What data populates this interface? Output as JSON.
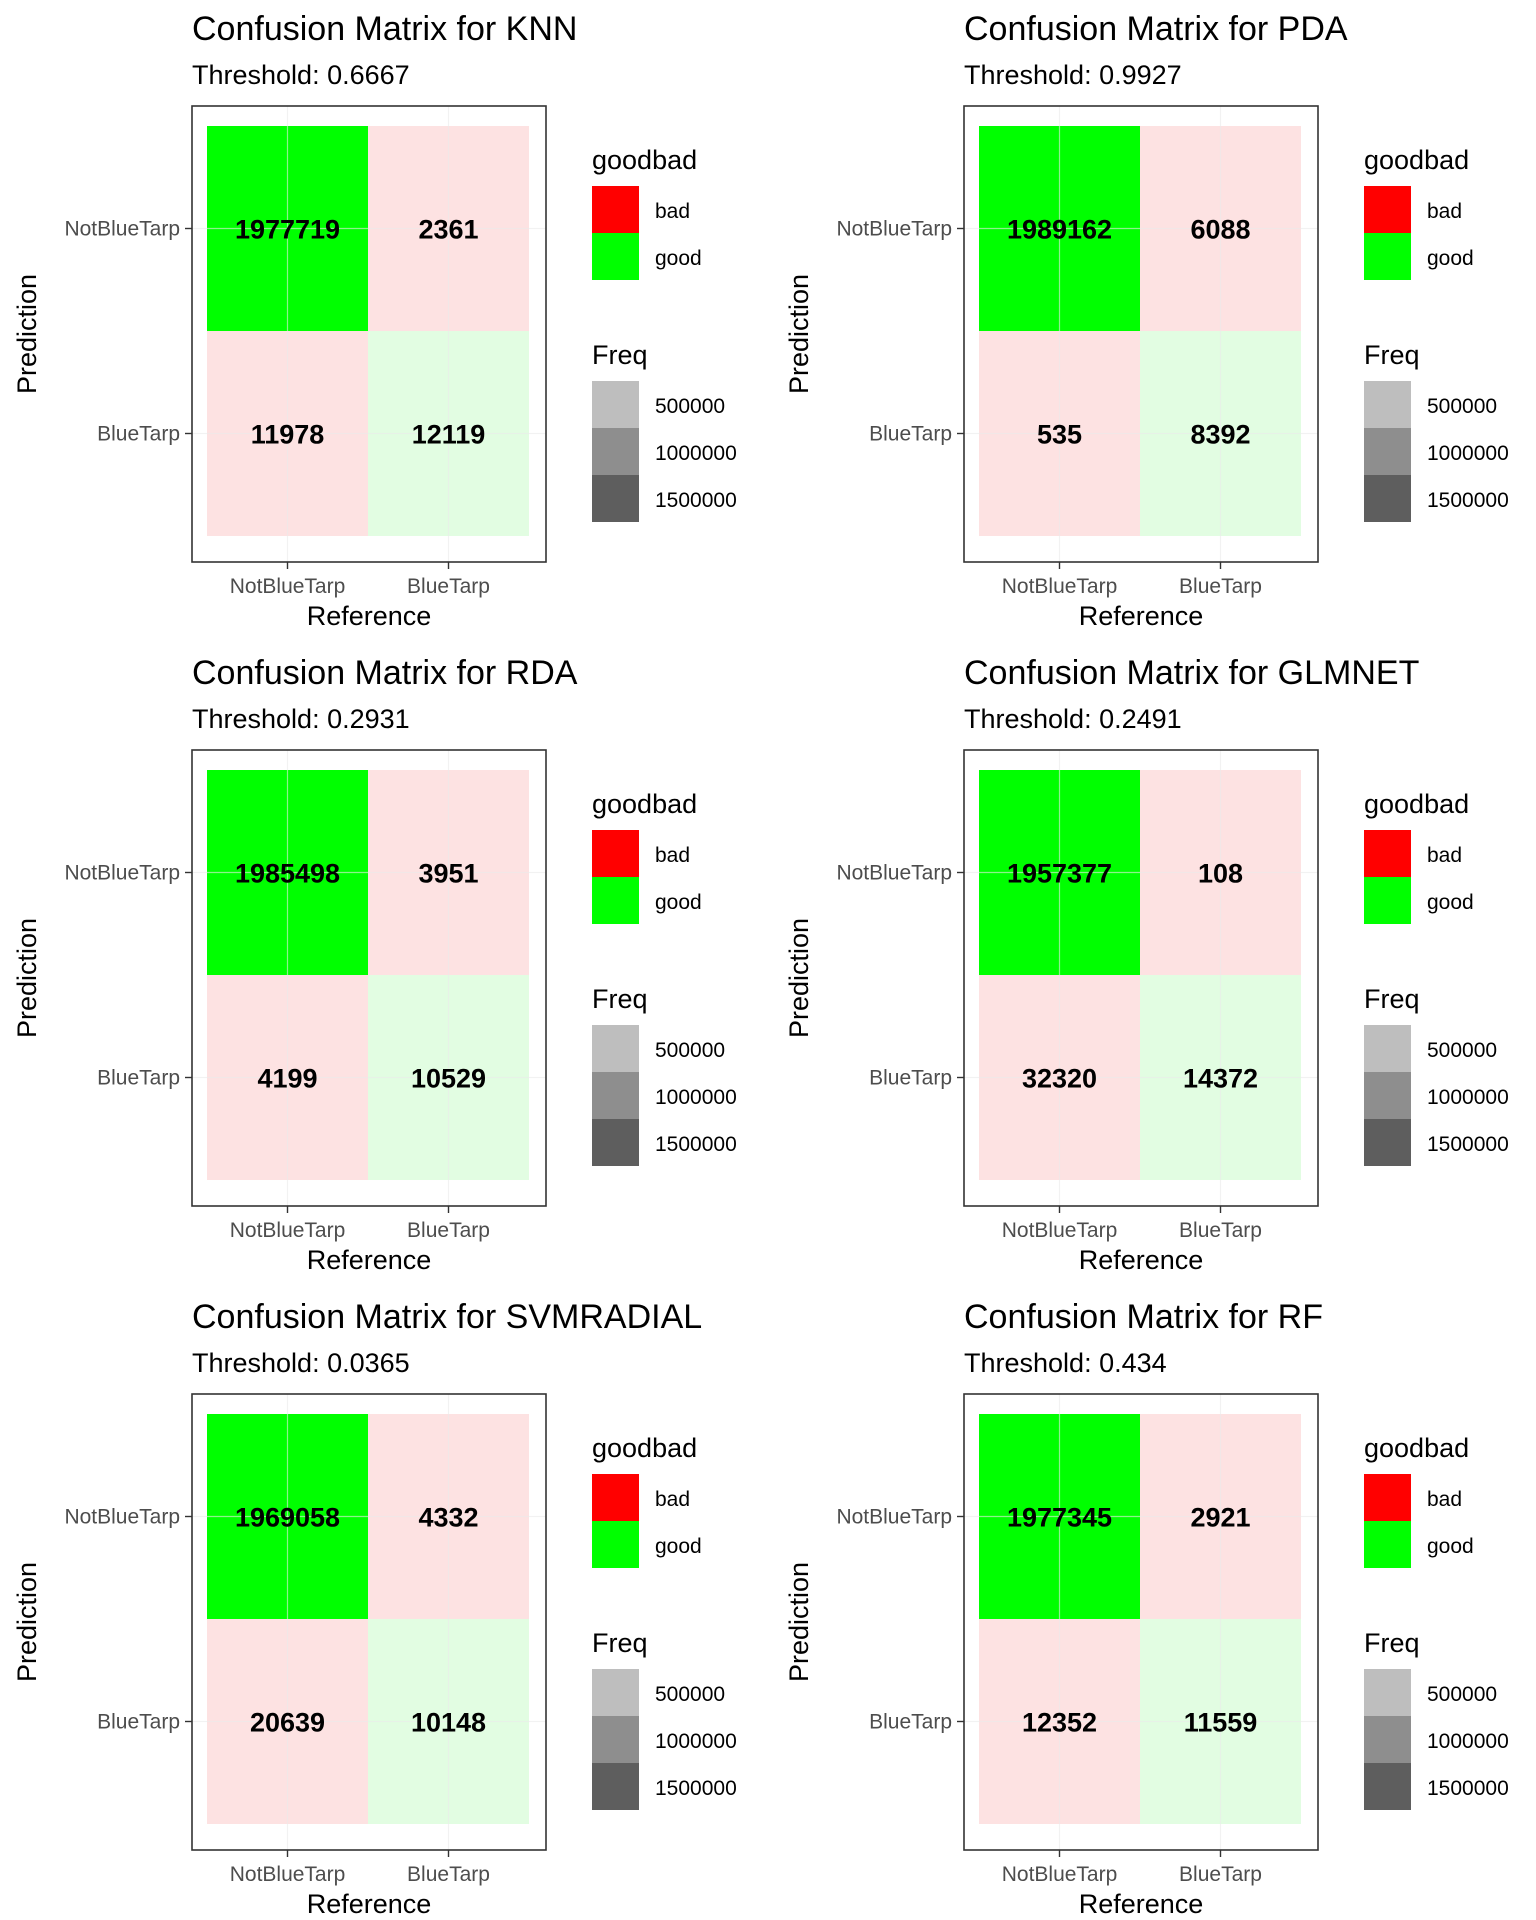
{
  "legend": {
    "goodbad_title": "goodbad",
    "goodbad_items": [
      {
        "label": "bad",
        "color": "#ff0000"
      },
      {
        "label": "good",
        "color": "#00ff00"
      }
    ],
    "freq_title": "Freq",
    "freq_items": [
      {
        "label": "500000",
        "color": "#bebebe"
      },
      {
        "label": "1000000",
        "color": "#8e8e8e"
      },
      {
        "label": "1500000",
        "color": "#5e5e5e"
      }
    ]
  },
  "colors": {
    "good_strong": "#00ff00",
    "good_light": "#e2fde2",
    "bad_light": "#fde2e2",
    "grid": "#ebebeb",
    "panel_border": "#333333"
  },
  "chart_data": [
    {
      "type": "heatmap",
      "title": "Confusion Matrix for KNN",
      "subtitle": "Threshold: 0.6667",
      "xlabel": "Reference",
      "ylabel": "Prediction",
      "x_categories": [
        "NotBlueTarp",
        "BlueTarp"
      ],
      "y_categories": [
        "NotBlueTarp",
        "BlueTarp"
      ],
      "cells": [
        {
          "prediction": "NotBlueTarp",
          "reference": "NotBlueTarp",
          "freq": 1977719,
          "goodbad": "good"
        },
        {
          "prediction": "NotBlueTarp",
          "reference": "BlueTarp",
          "freq": 2361,
          "goodbad": "bad"
        },
        {
          "prediction": "BlueTarp",
          "reference": "NotBlueTarp",
          "freq": 11978,
          "goodbad": "bad"
        },
        {
          "prediction": "BlueTarp",
          "reference": "BlueTarp",
          "freq": 12119,
          "goodbad": "good"
        }
      ]
    },
    {
      "type": "heatmap",
      "title": "Confusion Matrix for PDA",
      "subtitle": "Threshold: 0.9927",
      "xlabel": "Reference",
      "ylabel": "Prediction",
      "x_categories": [
        "NotBlueTarp",
        "BlueTarp"
      ],
      "y_categories": [
        "NotBlueTarp",
        "BlueTarp"
      ],
      "cells": [
        {
          "prediction": "NotBlueTarp",
          "reference": "NotBlueTarp",
          "freq": 1989162,
          "goodbad": "good"
        },
        {
          "prediction": "NotBlueTarp",
          "reference": "BlueTarp",
          "freq": 6088,
          "goodbad": "bad"
        },
        {
          "prediction": "BlueTarp",
          "reference": "NotBlueTarp",
          "freq": 535,
          "goodbad": "bad"
        },
        {
          "prediction": "BlueTarp",
          "reference": "BlueTarp",
          "freq": 8392,
          "goodbad": "good"
        }
      ]
    },
    {
      "type": "heatmap",
      "title": "Confusion Matrix for RDA",
      "subtitle": "Threshold: 0.2931",
      "xlabel": "Reference",
      "ylabel": "Prediction",
      "x_categories": [
        "NotBlueTarp",
        "BlueTarp"
      ],
      "y_categories": [
        "NotBlueTarp",
        "BlueTarp"
      ],
      "cells": [
        {
          "prediction": "NotBlueTarp",
          "reference": "NotBlueTarp",
          "freq": 1985498,
          "goodbad": "good"
        },
        {
          "prediction": "NotBlueTarp",
          "reference": "BlueTarp",
          "freq": 3951,
          "goodbad": "bad"
        },
        {
          "prediction": "BlueTarp",
          "reference": "NotBlueTarp",
          "freq": 4199,
          "goodbad": "bad"
        },
        {
          "prediction": "BlueTarp",
          "reference": "BlueTarp",
          "freq": 10529,
          "goodbad": "good"
        }
      ]
    },
    {
      "type": "heatmap",
      "title": "Confusion Matrix for GLMNET",
      "subtitle": "Threshold: 0.2491",
      "xlabel": "Reference",
      "ylabel": "Prediction",
      "x_categories": [
        "NotBlueTarp",
        "BlueTarp"
      ],
      "y_categories": [
        "NotBlueTarp",
        "BlueTarp"
      ],
      "cells": [
        {
          "prediction": "NotBlueTarp",
          "reference": "NotBlueTarp",
          "freq": 1957377,
          "goodbad": "good"
        },
        {
          "prediction": "NotBlueTarp",
          "reference": "BlueTarp",
          "freq": 108,
          "goodbad": "bad"
        },
        {
          "prediction": "BlueTarp",
          "reference": "NotBlueTarp",
          "freq": 32320,
          "goodbad": "bad"
        },
        {
          "prediction": "BlueTarp",
          "reference": "BlueTarp",
          "freq": 14372,
          "goodbad": "good"
        }
      ]
    },
    {
      "type": "heatmap",
      "title": "Confusion Matrix for SVMRADIAL",
      "subtitle": "Threshold: 0.0365",
      "xlabel": "Reference",
      "ylabel": "Prediction",
      "x_categories": [
        "NotBlueTarp",
        "BlueTarp"
      ],
      "y_categories": [
        "NotBlueTarp",
        "BlueTarp"
      ],
      "cells": [
        {
          "prediction": "NotBlueTarp",
          "reference": "NotBlueTarp",
          "freq": 1969058,
          "goodbad": "good"
        },
        {
          "prediction": "NotBlueTarp",
          "reference": "BlueTarp",
          "freq": 4332,
          "goodbad": "bad"
        },
        {
          "prediction": "BlueTarp",
          "reference": "NotBlueTarp",
          "freq": 20639,
          "goodbad": "bad"
        },
        {
          "prediction": "BlueTarp",
          "reference": "BlueTarp",
          "freq": 10148,
          "goodbad": "good"
        }
      ]
    },
    {
      "type": "heatmap",
      "title": "Confusion Matrix for RF",
      "subtitle": "Threshold: 0.434",
      "xlabel": "Reference",
      "ylabel": "Prediction",
      "x_categories": [
        "NotBlueTarp",
        "BlueTarp"
      ],
      "y_categories": [
        "NotBlueTarp",
        "BlueTarp"
      ],
      "cells": [
        {
          "prediction": "NotBlueTarp",
          "reference": "NotBlueTarp",
          "freq": 1977345,
          "goodbad": "good"
        },
        {
          "prediction": "NotBlueTarp",
          "reference": "BlueTarp",
          "freq": 2921,
          "goodbad": "bad"
        },
        {
          "prediction": "BlueTarp",
          "reference": "NotBlueTarp",
          "freq": 12352,
          "goodbad": "bad"
        },
        {
          "prediction": "BlueTarp",
          "reference": "BlueTarp",
          "freq": 11559,
          "goodbad": "good"
        }
      ]
    }
  ]
}
